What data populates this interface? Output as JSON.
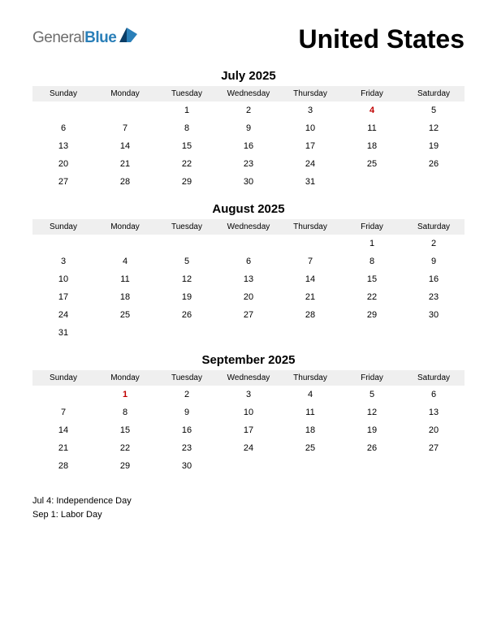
{
  "logo": {
    "text1": "General",
    "text2": "Blue",
    "color1": "#6e6e6e",
    "color2": "#2a7fb8",
    "mark_color_dark": "#0b3d66",
    "mark_color_light": "#2a7fb8"
  },
  "country": "United States",
  "day_headers": [
    "Sunday",
    "Monday",
    "Tuesday",
    "Wednesday",
    "Thursday",
    "Friday",
    "Saturday"
  ],
  "header_bg": "#efefef",
  "text_color": "#000000",
  "holiday_color": "#c00000",
  "background_color": "#ffffff",
  "font_family": "Arial, Helvetica, sans-serif",
  "months": [
    {
      "title": "July 2025",
      "weeks": [
        [
          "",
          "",
          "1",
          "2",
          "3",
          "4",
          "5"
        ],
        [
          "6",
          "7",
          "8",
          "9",
          "10",
          "11",
          "12"
        ],
        [
          "13",
          "14",
          "15",
          "16",
          "17",
          "18",
          "19"
        ],
        [
          "20",
          "21",
          "22",
          "23",
          "24",
          "25",
          "26"
        ],
        [
          "27",
          "28",
          "29",
          "30",
          "31",
          "",
          ""
        ]
      ],
      "holidays": [
        [
          0,
          5
        ]
      ]
    },
    {
      "title": "August 2025",
      "weeks": [
        [
          "",
          "",
          "",
          "",
          "",
          "1",
          "2"
        ],
        [
          "3",
          "4",
          "5",
          "6",
          "7",
          "8",
          "9"
        ],
        [
          "10",
          "11",
          "12",
          "13",
          "14",
          "15",
          "16"
        ],
        [
          "17",
          "18",
          "19",
          "20",
          "21",
          "22",
          "23"
        ],
        [
          "24",
          "25",
          "26",
          "27",
          "28",
          "29",
          "30"
        ],
        [
          "31",
          "",
          "",
          "",
          "",
          "",
          ""
        ]
      ],
      "holidays": []
    },
    {
      "title": "September 2025",
      "weeks": [
        [
          "",
          "1",
          "2",
          "3",
          "4",
          "5",
          "6"
        ],
        [
          "7",
          "8",
          "9",
          "10",
          "11",
          "12",
          "13"
        ],
        [
          "14",
          "15",
          "16",
          "17",
          "18",
          "19",
          "20"
        ],
        [
          "21",
          "22",
          "23",
          "24",
          "25",
          "26",
          "27"
        ],
        [
          "28",
          "29",
          "30",
          "",
          "",
          "",
          ""
        ]
      ],
      "holidays": [
        [
          0,
          1
        ]
      ]
    }
  ],
  "holiday_list": [
    "Jul 4: Independence Day",
    "Sep 1: Labor Day"
  ]
}
